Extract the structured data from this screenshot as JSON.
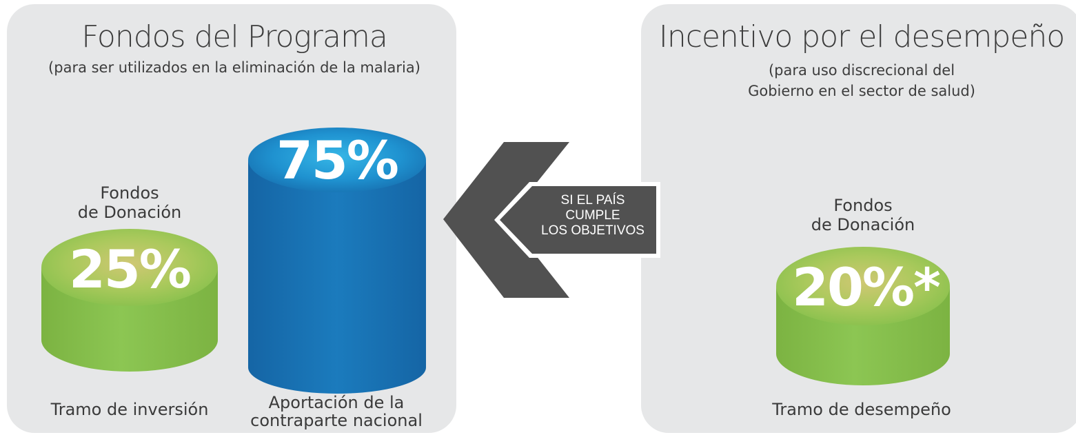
{
  "left_panel": {
    "title": "Fondos del Programa",
    "subtitle": "(para ser utilizados en la eliminación de la malaria)",
    "investment": {
      "label_line1": "Fondos",
      "label_line2": "de Donación",
      "value": "25%",
      "caption": "Tramo de inversión"
    },
    "counterpart": {
      "value": "75%",
      "caption_line1": "Aportación de la",
      "caption_line2": "contraparte nacional"
    }
  },
  "arrow": {
    "line1": "SI EL PAÍS",
    "line2": "CUMPLE",
    "line3": "LOS OBJETIVOS"
  },
  "right_panel": {
    "title": "Incentivo por el desempeño",
    "subtitle_line1": "(para uso discrecional del",
    "subtitle_line2": "Gobierno en el sector de salud)",
    "performance": {
      "label_line1": "Fondos",
      "label_line2": "de Donación",
      "value": "20%*",
      "caption": "Tramo de desempeño"
    }
  },
  "colors": {
    "panel_bg": "#e6e7e8",
    "green": "#8bc34a",
    "blue": "#1b75b5",
    "arrow_dark": "#515151"
  }
}
